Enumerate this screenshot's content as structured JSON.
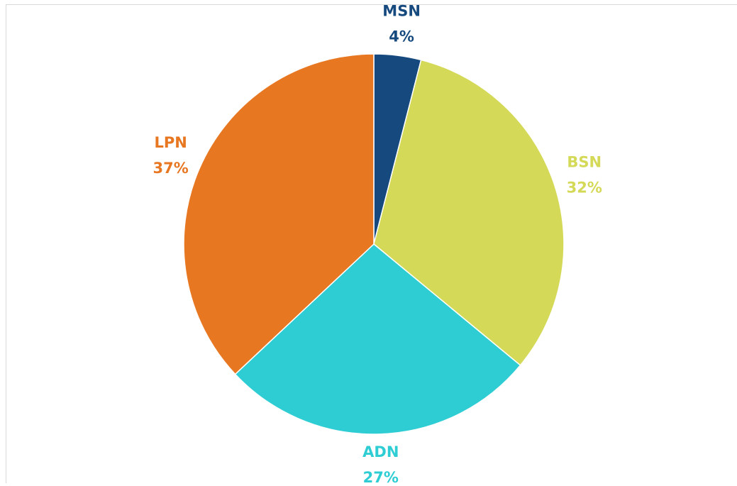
{
  "chart_data": {
    "type": "pie",
    "categories": [
      "MSN",
      "BSN",
      "ADN",
      "LPN"
    ],
    "values": [
      4,
      32,
      27,
      37
    ],
    "value_labels": [
      "4%",
      "32%",
      "27%",
      "37%"
    ],
    "colors": [
      "#164a7e",
      "#d4d957",
      "#2ecdd4",
      "#e87722"
    ]
  }
}
